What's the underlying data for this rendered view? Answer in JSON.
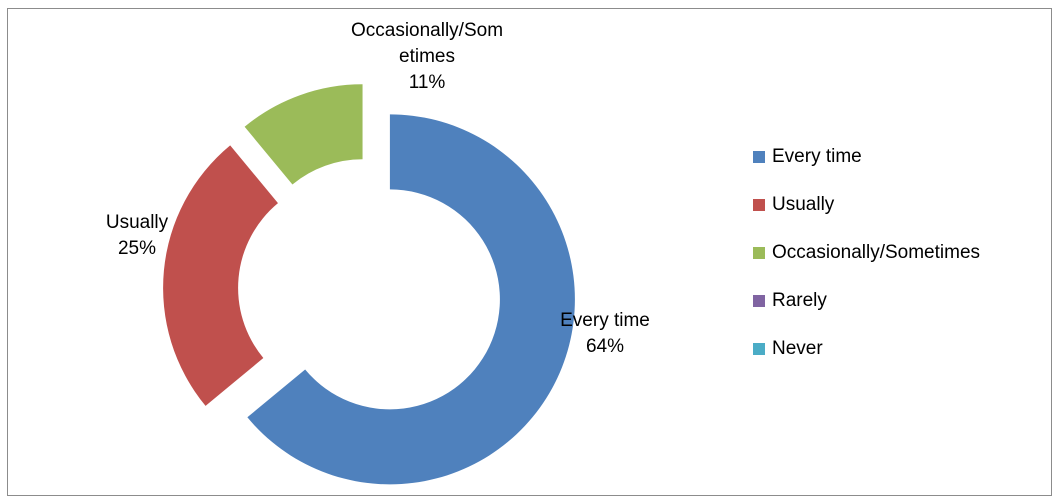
{
  "chart_data": {
    "type": "pie",
    "donut": true,
    "categories": [
      "Every time",
      "Usually",
      "Occasionally/Sometimes",
      "Rarely",
      "Never"
    ],
    "values": [
      64,
      25,
      11,
      0,
      0
    ],
    "colors": [
      "#4F81BD",
      "#C0504D",
      "#9BBB59",
      "#8064A2",
      "#4BACC6"
    ],
    "data_labels": [
      {
        "category": "Every time",
        "name_text": "Every time",
        "value_text": "64%"
      },
      {
        "category": "Usually",
        "name_text": "Usually",
        "value_text": "25%"
      },
      {
        "category": "Occasionally/Sometimes",
        "name_text": "Occasionally/Som\netimes",
        "value_text": "11%"
      }
    ],
    "legend": {
      "placement": "right",
      "entries": [
        "Every time",
        "Usually",
        "Occasionally/Sometimes",
        "Rarely",
        "Never"
      ]
    }
  }
}
